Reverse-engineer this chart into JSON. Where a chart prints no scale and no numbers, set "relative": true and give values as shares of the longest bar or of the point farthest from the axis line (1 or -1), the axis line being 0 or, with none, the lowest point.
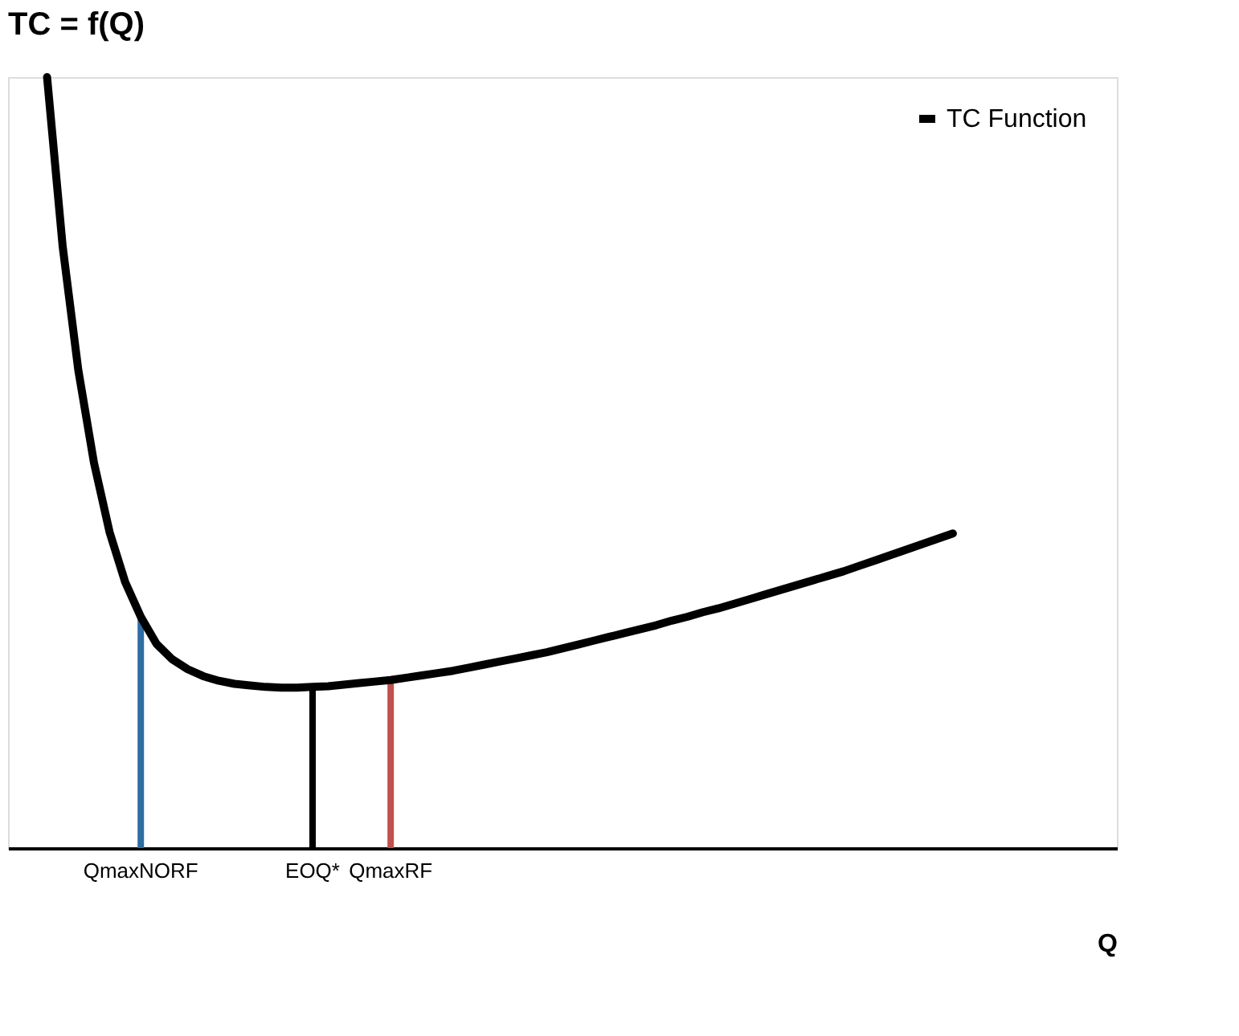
{
  "chart_data": {
    "type": "line",
    "title": "TC = f(Q)",
    "xlabel": "Q",
    "relative": true,
    "legend": "top right",
    "grid": false,
    "categories": [
      null,
      null,
      null,
      null,
      null,
      null,
      null,
      null,
      "QmaxNORF",
      null,
      null,
      null,
      null,
      null,
      null,
      null,
      null,
      null,
      null,
      "EOQ*",
      null,
      null,
      null,
      null,
      "QmaxRF",
      null,
      null,
      null,
      null,
      null,
      null,
      null,
      null,
      null,
      null,
      null,
      null,
      null,
      null,
      null,
      null,
      null,
      null,
      null,
      null,
      null,
      null,
      null,
      null,
      null,
      null,
      null,
      null,
      null,
      null,
      null,
      null,
      null,
      null,
      null,
      null,
      null,
      null,
      null,
      null,
      null,
      null,
      null,
      null,
      null,
      null
    ],
    "series": [
      {
        "name": "TC Function",
        "type": "line",
        "color": "#000000",
        "values": [
          null,
          null,
          1.0,
          0.78,
          0.62,
          0.5,
          0.41,
          0.345,
          0.3,
          0.265,
          0.245,
          0.232,
          0.223,
          0.217,
          0.213,
          0.211,
          0.209,
          0.208,
          0.208,
          0.209,
          0.21,
          0.212,
          0.214,
          0.216,
          0.218,
          0.221,
          0.224,
          0.227,
          0.23,
          0.234,
          0.238,
          0.242,
          0.246,
          0.25,
          0.254,
          0.259,
          0.264,
          0.269,
          0.274,
          0.279,
          0.284,
          0.289,
          0.295,
          0.3,
          0.306,
          0.311,
          0.317,
          0.323,
          0.329,
          0.335,
          0.341,
          0.347,
          0.353,
          0.359,
          0.366,
          0.373,
          0.38,
          0.387,
          0.394,
          0.401,
          0.408,
          null,
          null,
          null,
          null,
          null,
          null,
          null,
          null,
          null,
          null
        ]
      },
      {
        "type": "bar",
        "colors": [
          null,
          null,
          null,
          null,
          null,
          null,
          null,
          null,
          "#2e6da4",
          null,
          null,
          null,
          null,
          null,
          null,
          null,
          null,
          null,
          null,
          "#000000",
          null,
          null,
          null,
          null,
          "#c0504d",
          null,
          null,
          null,
          null,
          null,
          null,
          null,
          null,
          null,
          null,
          null,
          null,
          null,
          null,
          null,
          null,
          null,
          null,
          null,
          null,
          null,
          null,
          null,
          null,
          null,
          null,
          null,
          null,
          null,
          null,
          null,
          null,
          null,
          null,
          null,
          null,
          null,
          null,
          null,
          null,
          null,
          null,
          null,
          null,
          null,
          null
        ],
        "values": [
          null,
          null,
          null,
          null,
          null,
          null,
          null,
          null,
          0.3,
          null,
          null,
          null,
          null,
          null,
          null,
          null,
          null,
          null,
          null,
          0.209,
          null,
          null,
          null,
          null,
          0.218,
          null,
          null,
          null,
          null,
          null,
          null,
          null,
          null,
          null,
          null,
          null,
          null,
          null,
          null,
          null,
          null,
          null,
          null,
          null,
          null,
          null,
          null,
          null,
          null,
          null,
          null,
          null,
          null,
          null,
          null,
          null,
          null,
          null,
          null,
          null,
          null,
          null,
          null,
          null,
          null,
          null,
          null,
          null,
          null,
          null,
          null
        ]
      }
    ]
  }
}
